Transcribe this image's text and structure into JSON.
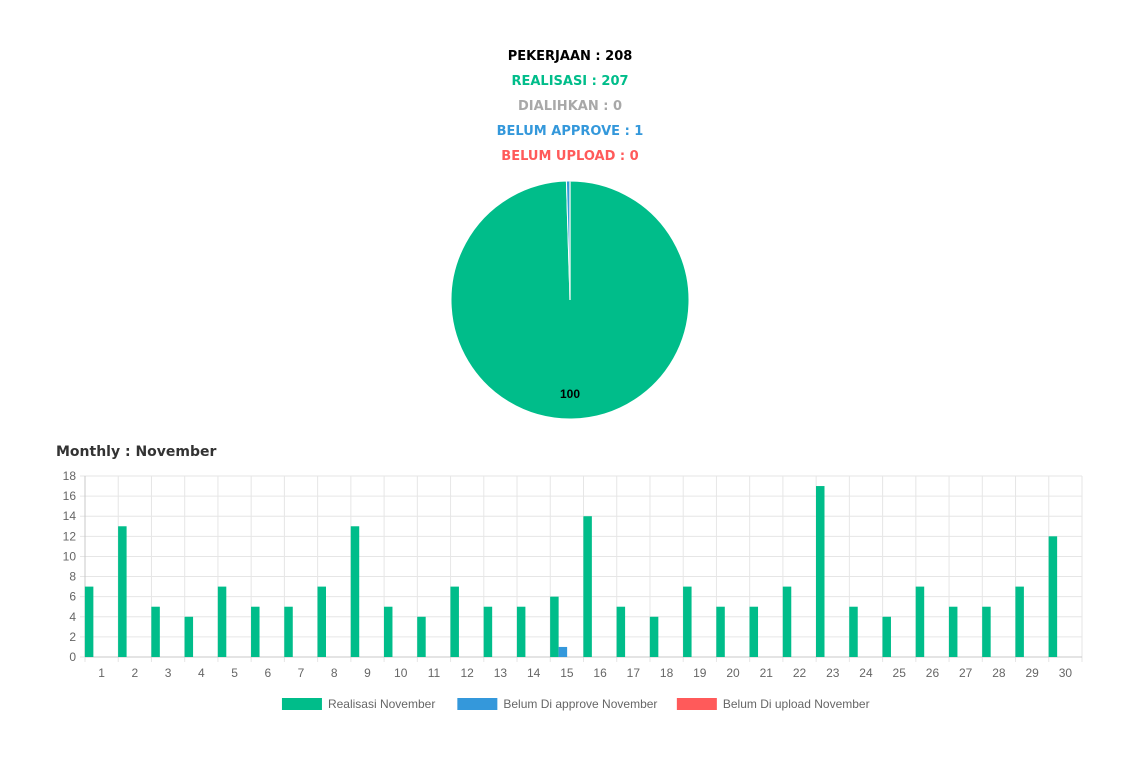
{
  "summary": [
    {
      "label": "PEKERJAAN : 208",
      "color": "#000000"
    },
    {
      "label": "REALISASI : 207",
      "color": "#00bd8a"
    },
    {
      "label": "DIALIHKAN : 0",
      "color": "#a8a8a8"
    },
    {
      "label": "BELUM APPROVE : 1",
      "color": "#3498db"
    },
    {
      "label": "BELUM UPLOAD : 0",
      "color": "#ff5a5a"
    }
  ],
  "monthly_title": "Monthly : November",
  "colors": {
    "realisasi": "#00bd8a",
    "approve": "#3498db",
    "upload": "#ff5a5a",
    "grid": "#e6e6e6",
    "axis": "#c8c8c8",
    "tick_text": "#666666"
  },
  "chart_data": [
    {
      "type": "pie",
      "values": [
        207,
        1,
        0
      ],
      "colors": [
        "#00bd8a",
        "#3498db",
        "#ff5a5a"
      ],
      "slice_label": "100"
    },
    {
      "type": "bar",
      "categories": [
        "1",
        "2",
        "3",
        "4",
        "5",
        "6",
        "7",
        "8",
        "9",
        "10",
        "11",
        "12",
        "13",
        "14",
        "15",
        "16",
        "17",
        "18",
        "19",
        "20",
        "21",
        "22",
        "23",
        "24",
        "25",
        "26",
        "27",
        "28",
        "29",
        "30"
      ],
      "series": [
        {
          "name": "Realisasi November",
          "color": "#00bd8a",
          "values": [
            7,
            13,
            5,
            4,
            7,
            5,
            5,
            7,
            13,
            5,
            4,
            7,
            5,
            5,
            6,
            14,
            5,
            4,
            7,
            5,
            5,
            7,
            17,
            5,
            4,
            7,
            5,
            5,
            7,
            12
          ]
        },
        {
          "name": "Belum Di approve November",
          "color": "#3498db",
          "values": [
            0,
            0,
            0,
            0,
            0,
            0,
            0,
            0,
            0,
            0,
            0,
            0,
            0,
            0,
            1,
            0,
            0,
            0,
            0,
            0,
            0,
            0,
            0,
            0,
            0,
            0,
            0,
            0,
            0,
            0
          ]
        },
        {
          "name": "Belum Di upload November",
          "color": "#ff5a5a",
          "values": [
            0,
            0,
            0,
            0,
            0,
            0,
            0,
            0,
            0,
            0,
            0,
            0,
            0,
            0,
            0,
            0,
            0,
            0,
            0,
            0,
            0,
            0,
            0,
            0,
            0,
            0,
            0,
            0,
            0,
            0
          ]
        }
      ],
      "ylim": [
        0,
        18
      ],
      "yticks": [
        0,
        2,
        4,
        6,
        8,
        10,
        12,
        14,
        16,
        18
      ],
      "grid": true,
      "legend": "bottom-center"
    }
  ]
}
